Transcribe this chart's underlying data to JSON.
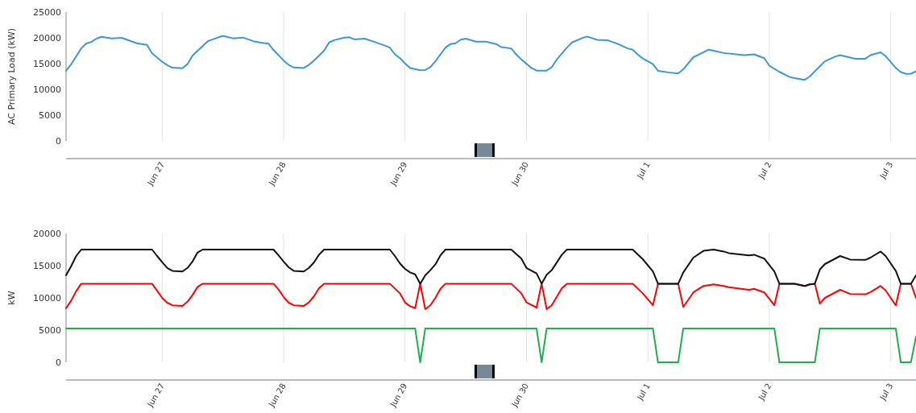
{
  "chart_data": [
    {
      "type": "line",
      "ylabel": "AC Primary Load (kW)",
      "xlim": [
        "--06-26T05:00",
        "--07-03T05:00"
      ],
      "ylim": [
        0,
        25000
      ],
      "yticks": [
        0,
        5000,
        10000,
        15000,
        20000,
        25000
      ],
      "xticks": [
        {
          "value": "--06-27",
          "label": "Jun 27"
        },
        {
          "value": "--06-28",
          "label": "Jun 28"
        },
        {
          "value": "--06-29",
          "label": "Jun 29"
        },
        {
          "value": "--06-30",
          "label": "Jun 30"
        },
        {
          "value": "--07-01",
          "label": "Jul 1"
        },
        {
          "value": "--07-02",
          "label": "Jul 2"
        },
        {
          "value": "--07-03",
          "label": "Jul 3"
        }
      ],
      "grid": "x",
      "line_style": "solid",
      "series": [
        {
          "color": "#3a96dd",
          "x": [
            "--06-26T05:00",
            "--06-26T06:00",
            "--06-26T08:00",
            "--06-26T09:00",
            "--06-26T10:00",
            "--06-26T11:00",
            "--06-26T12:00",
            "--06-26T14:00",
            "--06-26T16:00",
            "--06-26T19:00",
            "--06-26T21:00",
            "--06-26T22:00",
            "--06-27T00:00",
            "--06-27T01:00",
            "--06-27T02:00",
            "--06-27T04:00",
            "--06-27T05:00",
            "--06-27T06:00",
            "--06-27T08:00",
            "--06-27T09:00",
            "--06-27T10:00",
            "--06-27T12:00",
            "--06-27T14:00",
            "--06-27T16:00",
            "--06-27T18:00",
            "--06-27T20:00",
            "--06-27T21:00",
            "--06-27T22:00",
            "--06-27T23:00",
            "--06-28T00:00",
            "--06-28T01:00",
            "--06-28T02:00",
            "--06-28T04:00",
            "--06-28T05:00",
            "--06-28T06:00",
            "--06-28T08:00",
            "--06-28T09:00",
            "--06-28T10:00",
            "--06-28T12:00",
            "--06-28T13:00",
            "--06-28T14:00",
            "--06-28T16:00",
            "--06-28T18:00",
            "--06-28T20:00",
            "--06-28T21:00",
            "--06-28T22:00",
            "--06-28T23:00",
            "--06-29T00:00",
            "--06-29T01:00",
            "--06-29T03:00",
            "--06-29T04:00",
            "--06-29T05:00",
            "--06-29T06:00",
            "--06-29T07:00",
            "--06-29T08:00",
            "--06-29T09:00",
            "--06-29T10:00",
            "--06-29T11:00",
            "--06-29T12:00",
            "--06-29T14:00",
            "--06-29T16:00",
            "--06-29T18:00",
            "--06-29T19:00",
            "--06-29T21:00",
            "--06-29T22:00",
            "--06-29T23:00",
            "--06-30T01:00",
            "--06-30T02:00",
            "--06-30T04:00",
            "--06-30T05:00",
            "--06-30T06:00",
            "--06-30T08:00",
            "--06-30T09:00",
            "--06-30T11:00",
            "--06-30T12:00",
            "--06-30T14:00",
            "--06-30T16:00",
            "--06-30T18:00",
            "--06-30T20:00",
            "--06-30T21:00",
            "--06-30T22:00",
            "--06-30T23:00",
            "--07-01T01:00",
            "--07-01T02:00",
            "--07-01T04:00",
            "--07-01T06:00",
            "--07-01T07:00",
            "--07-01T09:00",
            "--07-01T11:00",
            "--07-01T12:00",
            "--07-01T13:00",
            "--07-01T15:00",
            "--07-01T19:00",
            "--07-01T21:00",
            "--07-01T23:00",
            "--07-02T00:00",
            "--07-02T02:00",
            "--07-02T03:00",
            "--07-02T04:00",
            "--07-02T05:00",
            "--07-02T07:00",
            "--07-02T08:00",
            "--07-02T10:00",
            "--07-02T11:00",
            "--07-02T13:00",
            "--07-02T14:00",
            "--07-02T17:00",
            "--07-02T19:00",
            "--07-02T20:00",
            "--07-02T22:00",
            "--07-02T23:00",
            "--07-03T01:00",
            "--07-03T02:00",
            "--07-03T03:00",
            "--07-03T04:00",
            "--07-03T05:00"
          ],
          "values": [
            13600,
            14850,
            17950,
            18900,
            19200,
            19850,
            20200,
            19900,
            20000,
            18950,
            18650,
            17000,
            15350,
            14700,
            14200,
            14100,
            14900,
            16550,
            18400,
            19350,
            19700,
            20400,
            19900,
            20050,
            19350,
            19000,
            18900,
            17650,
            16650,
            15600,
            14750,
            14250,
            14150,
            14750,
            15600,
            17500,
            19100,
            19550,
            20050,
            20100,
            19700,
            19850,
            19200,
            18500,
            18100,
            16800,
            16050,
            15050,
            14150,
            13700,
            13750,
            14300,
            15450,
            16800,
            18100,
            18800,
            18950,
            19650,
            19850,
            19250,
            19250,
            18800,
            18200,
            17950,
            16750,
            15800,
            14150,
            13650,
            13650,
            14300,
            15800,
            18100,
            19100,
            19950,
            20250,
            19600,
            19550,
            18850,
            17950,
            17700,
            16750,
            16000,
            14900,
            13600,
            13300,
            13100,
            13900,
            16250,
            17200,
            17700,
            17500,
            17050,
            16650,
            16800,
            16050,
            14600,
            13400,
            12900,
            12400,
            12200,
            11850,
            12500,
            14500,
            15450,
            16350,
            16650,
            15950,
            15950,
            16650,
            17200,
            16450,
            14150,
            13350,
            13000,
            13050,
            13500
          ]
        }
      ]
    },
    {
      "type": "line",
      "ylabel": "kW",
      "xlim": [
        "--06-26T05:00",
        "--07-03T05:00"
      ],
      "ylim": [
        0,
        20000
      ],
      "yticks": [
        0,
        5000,
        10000,
        15000,
        20000
      ],
      "xticks": [
        {
          "value": "--06-27",
          "label": "Jun 27"
        },
        {
          "value": "--06-28",
          "label": "Jun 28"
        },
        {
          "value": "--06-29",
          "label": "Jun 29"
        },
        {
          "value": "--06-30",
          "label": "Jun 30"
        },
        {
          "value": "--07-01",
          "label": "Jul 1"
        },
        {
          "value": "--07-02",
          "label": "Jul 2"
        },
        {
          "value": "--07-03",
          "label": "Jul 3"
        }
      ],
      "grid": "x",
      "line_style": "solid",
      "series": [
        {
          "color": "#111111",
          "x": [
            "--06-26T05:00",
            "--06-26T06:00",
            "--06-26T07:00",
            "--06-26T08:00",
            "--06-26T22:00",
            "--06-26T23:00",
            "--06-27T00:00",
            "--06-27T01:00",
            "--06-27T02:00",
            "--06-27T04:00",
            "--06-27T05:00",
            "--06-27T06:00",
            "--06-27T07:00",
            "--06-27T08:00",
            "--06-27T22:00",
            "--06-27T23:00",
            "--06-28T00:00",
            "--06-28T01:00",
            "--06-28T02:00",
            "--06-28T04:00",
            "--06-28T05:00",
            "--06-28T06:00",
            "--06-28T07:00",
            "--06-28T08:00",
            "--06-28T21:00",
            "--06-28T22:00",
            "--06-28T23:00",
            "--06-29T00:00",
            "--06-29T01:00",
            "--06-29T02:00",
            "--06-29T03:00",
            "--06-29T04:00",
            "--06-29T05:00",
            "--06-29T06:00",
            "--06-29T07:00",
            "--06-29T08:00",
            "--06-29T21:00",
            "--06-29T23:00",
            "--06-30T00:00",
            "--06-30T02:00",
            "--06-30T03:00",
            "--06-30T04:00",
            "--06-30T05:00",
            "--06-30T07:00",
            "--06-30T08:00",
            "--06-30T21:00",
            "--06-30T23:00",
            "--07-01T01:00",
            "--07-01T02:00",
            "--07-01T06:00",
            "--07-01T07:00",
            "--07-01T09:00",
            "--07-01T11:00",
            "--07-01T13:00",
            "--07-01T15:00",
            "--07-01T16:00",
            "--07-01T20:00",
            "--07-01T21:00",
            "--07-01T23:00",
            "--07-02T01:00",
            "--07-02T02:00",
            "--07-02T05:00",
            "--07-02T07:00",
            "--07-02T08:00",
            "--07-02T09:00",
            "--07-02T10:00",
            "--07-02T11:00",
            "--07-02T14:00",
            "--07-02T16:00",
            "--07-02T19:00",
            "--07-02T20:00",
            "--07-02T22:00",
            "--07-02T23:00",
            "--07-03T01:00",
            "--07-03T02:00",
            "--07-03T04:00",
            "--07-03T05:00"
          ],
          "values": [
            13500,
            14900,
            16500,
            17500,
            17500,
            16500,
            15550,
            14650,
            14200,
            14100,
            14650,
            15650,
            17050,
            17500,
            17500,
            16600,
            15650,
            14750,
            14200,
            14100,
            14650,
            15500,
            16700,
            17500,
            17500,
            16500,
            15350,
            14500,
            13950,
            13650,
            12200,
            13500,
            14300,
            15200,
            16600,
            17500,
            17500,
            16100,
            14650,
            13800,
            12200,
            13600,
            14300,
            16700,
            17500,
            17500,
            16000,
            14100,
            12200,
            12200,
            13950,
            16250,
            17300,
            17500,
            17200,
            16950,
            16600,
            16700,
            16100,
            14100,
            12200,
            12200,
            11850,
            12100,
            12200,
            14400,
            15250,
            16500,
            15950,
            15900,
            16250,
            17200,
            16500,
            14200,
            12200,
            12200,
            13500
          ]
        },
        {
          "color": "#ff0000",
          "x": [
            "--06-26T05:00",
            "--06-26T06:00",
            "--06-26T07:00",
            "--06-26T08:00",
            "--06-26T22:00",
            "--06-27T00:00",
            "--06-27T01:00",
            "--06-27T02:00",
            "--06-27T04:00",
            "--06-27T05:00",
            "--06-27T06:00",
            "--06-27T07:00",
            "--06-27T08:00",
            "--06-27T22:00",
            "--06-27T23:00",
            "--06-28T00:00",
            "--06-28T01:00",
            "--06-28T02:00",
            "--06-28T04:00",
            "--06-28T05:00",
            "--06-28T06:00",
            "--06-28T07:00",
            "--06-28T08:00",
            "--06-28T21:00",
            "--06-28T23:00",
            "--06-29T00:00",
            "--06-29T01:00",
            "--06-29T02:00",
            "--06-29T03:00",
            "--06-29T04:00",
            "--06-29T05:00",
            "--06-29T06:00",
            "--06-29T07:00",
            "--06-29T08:00",
            "--06-29T21:00",
            "--06-29T23:00",
            "--06-30T00:00",
            "--06-30T02:00",
            "--06-30T03:00",
            "--06-30T04:00",
            "--06-30T05:00",
            "--06-30T07:00",
            "--06-30T08:00",
            "--06-30T21:00",
            "--06-30T23:00",
            "--07-01T01:00",
            "--07-01T02:00",
            "--07-01T06:00",
            "--07-01T07:00",
            "--07-01T09:00",
            "--07-01T11:00",
            "--07-01T13:00",
            "--07-01T15:00",
            "--07-01T16:00",
            "--07-01T20:00",
            "--07-01T21:00",
            "--07-01T23:00",
            "--07-02T01:00",
            "--07-02T02:00",
            "--07-02T05:00",
            "--07-02T07:00",
            "--07-02T08:00",
            "--07-02T09:00",
            "--07-02T10:00",
            "--07-02T11:00",
            "--07-02T14:00",
            "--07-02T16:00",
            "--07-02T19:00",
            "--07-02T20:00",
            "--07-02T22:00",
            "--07-02T23:00",
            "--07-03T01:00",
            "--07-03T02:00",
            "--07-03T04:00",
            "--07-03T05:00"
          ],
          "values": [
            8400,
            9550,
            11050,
            12200,
            12200,
            10000,
            9250,
            8850,
            8760,
            9400,
            10450,
            11700,
            12200,
            12200,
            11300,
            10150,
            9250,
            8850,
            8760,
            9300,
            10250,
            11500,
            12200,
            12200,
            10700,
            9300,
            8700,
            8400,
            12200,
            8250,
            8850,
            10000,
            11400,
            12200,
            12200,
            10700,
            9300,
            8500,
            12200,
            8250,
            8850,
            11500,
            12200,
            12200,
            10700,
            8850,
            12200,
            12200,
            8600,
            10850,
            11850,
            12100,
            11850,
            11650,
            11250,
            11400,
            10850,
            8850,
            12200,
            12200,
            11850,
            12100,
            12200,
            9100,
            10000,
            11250,
            10600,
            10550,
            10900,
            11850,
            11150,
            8850,
            12200,
            12200,
            10000
          ]
        },
        {
          "color": "#1fb04c",
          "x": [
            "--06-26T05:00",
            "--06-29T02:00",
            "--06-29T03:00",
            "--06-29T04:00",
            "--06-30T02:00",
            "--06-30T03:00",
            "--06-30T04:00",
            "--07-01T01:00",
            "--07-01T02:00",
            "--07-01T06:00",
            "--07-01T07:00",
            "--07-02T01:00",
            "--07-02T02:00",
            "--07-02T09:00",
            "--07-02T10:00",
            "--07-03T01:00",
            "--07-03T02:00",
            "--07-03T04:00",
            "--07-03T05:00"
          ],
          "values": [
            5250,
            5250,
            0,
            5250,
            5250,
            0,
            5250,
            5250,
            0,
            0,
            5250,
            5250,
            0,
            0,
            5250,
            5250,
            0,
            0,
            4000
          ]
        }
      ]
    }
  ]
}
